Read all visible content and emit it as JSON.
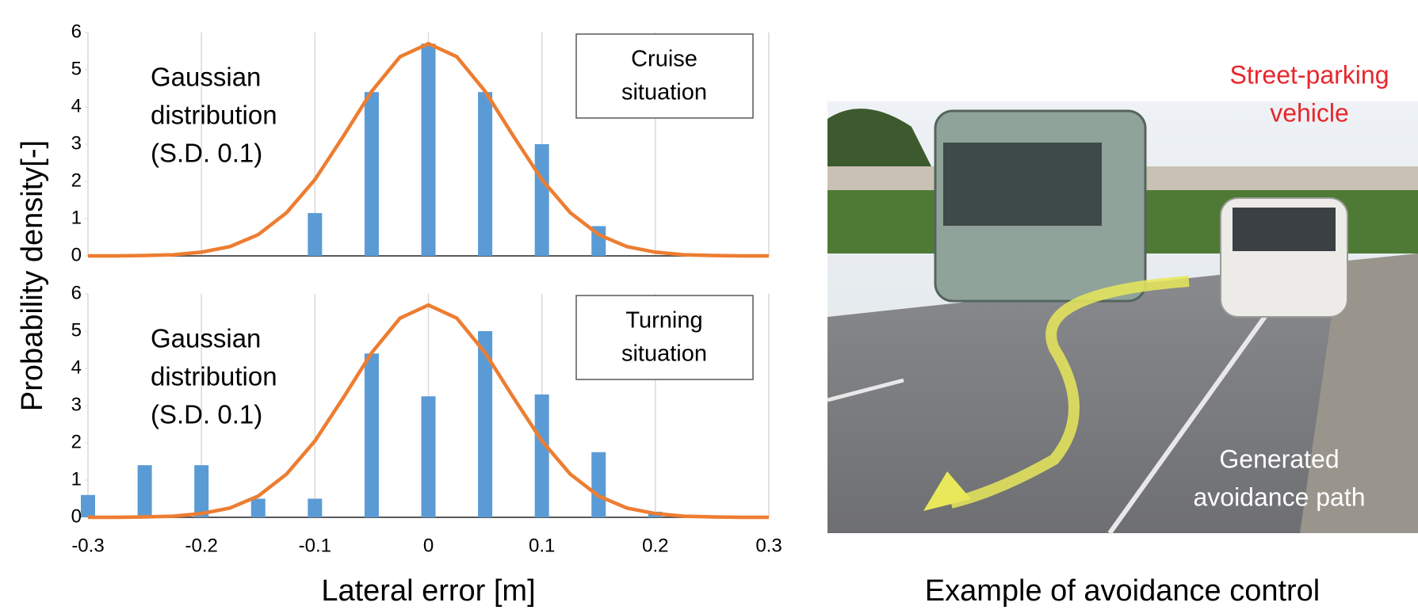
{
  "chart_data": [
    {
      "type": "bar",
      "annotation_lines": [
        "Gaussian",
        "distribution",
        "(S.D. 0.1)"
      ],
      "box_lines": [
        "Cruise",
        "situation"
      ],
      "ylabel": "Probability density[-]",
      "bars": {
        "color": "#5b9bd5",
        "x": [
          -0.1,
          -0.05,
          0,
          0.05,
          0.1,
          0.15
        ],
        "values": [
          1.15,
          4.4,
          5.7,
          4.4,
          3.0,
          0.8
        ]
      },
      "curve": {
        "color": "#ed7d31",
        "x": [
          -0.3,
          -0.275,
          -0.25,
          -0.225,
          -0.2,
          -0.175,
          -0.15,
          -0.125,
          -0.1,
          -0.075,
          -0.05,
          -0.025,
          0,
          0.025,
          0.05,
          0.075,
          0.1,
          0.125,
          0.15,
          0.175,
          0.2,
          0.225,
          0.25,
          0.275,
          0.3
        ],
        "values": [
          0,
          0,
          0.01,
          0.03,
          0.1,
          0.25,
          0.57,
          1.16,
          2.05,
          3.21,
          4.42,
          5.35,
          5.7,
          5.35,
          4.42,
          3.21,
          2.05,
          1.16,
          0.57,
          0.25,
          0.1,
          0.03,
          0.01,
          0,
          0
        ]
      },
      "xlim": [
        -0.3,
        0.3
      ],
      "xticks": [
        -0.3,
        -0.2,
        -0.1,
        0,
        0.1,
        0.2,
        0.3
      ],
      "show_xtick_labels": false,
      "ylim": [
        0,
        6
      ],
      "yticks": [
        0,
        1,
        2,
        3,
        4,
        5,
        6
      ],
      "grid": "x"
    },
    {
      "type": "bar",
      "annotation_lines": [
        "Gaussian",
        "distribution",
        "(S.D. 0.1)"
      ],
      "box_lines": [
        "Turning",
        "situation"
      ],
      "xlabel": "Lateral error [m]",
      "bars": {
        "color": "#5b9bd5",
        "x": [
          -0.3,
          -0.25,
          -0.2,
          -0.15,
          -0.1,
          -0.05,
          0,
          0.05,
          0.1,
          0.15,
          0.2
        ],
        "values": [
          0.6,
          1.4,
          1.4,
          0.5,
          0.5,
          4.4,
          3.25,
          5.0,
          3.3,
          1.75,
          0.15
        ]
      },
      "curve": {
        "color": "#ed7d31",
        "x": [
          -0.3,
          -0.275,
          -0.25,
          -0.225,
          -0.2,
          -0.175,
          -0.15,
          -0.125,
          -0.1,
          -0.075,
          -0.05,
          -0.025,
          0,
          0.025,
          0.05,
          0.075,
          0.1,
          0.125,
          0.15,
          0.175,
          0.2,
          0.225,
          0.25,
          0.275,
          0.3
        ],
        "values": [
          0,
          0,
          0.01,
          0.03,
          0.1,
          0.25,
          0.57,
          1.16,
          2.05,
          3.21,
          4.42,
          5.35,
          5.7,
          5.35,
          4.42,
          3.21,
          2.05,
          1.16,
          0.57,
          0.25,
          0.1,
          0.03,
          0.01,
          0,
          0
        ]
      },
      "xlim": [
        -0.3,
        0.3
      ],
      "xticks": [
        -0.3,
        -0.2,
        -0.1,
        0,
        0.1,
        0.2,
        0.3
      ],
      "show_xtick_labels": true,
      "ylim": [
        0,
        6
      ],
      "yticks": [
        0,
        1,
        2,
        3,
        4,
        5,
        6
      ],
      "grid": "x"
    }
  ],
  "photo": {
    "vehicle_label": [
      "Street-parking",
      "vehicle"
    ],
    "path_label": [
      "Generated",
      "avoidance path"
    ],
    "caption": "Example of avoidance control"
  }
}
